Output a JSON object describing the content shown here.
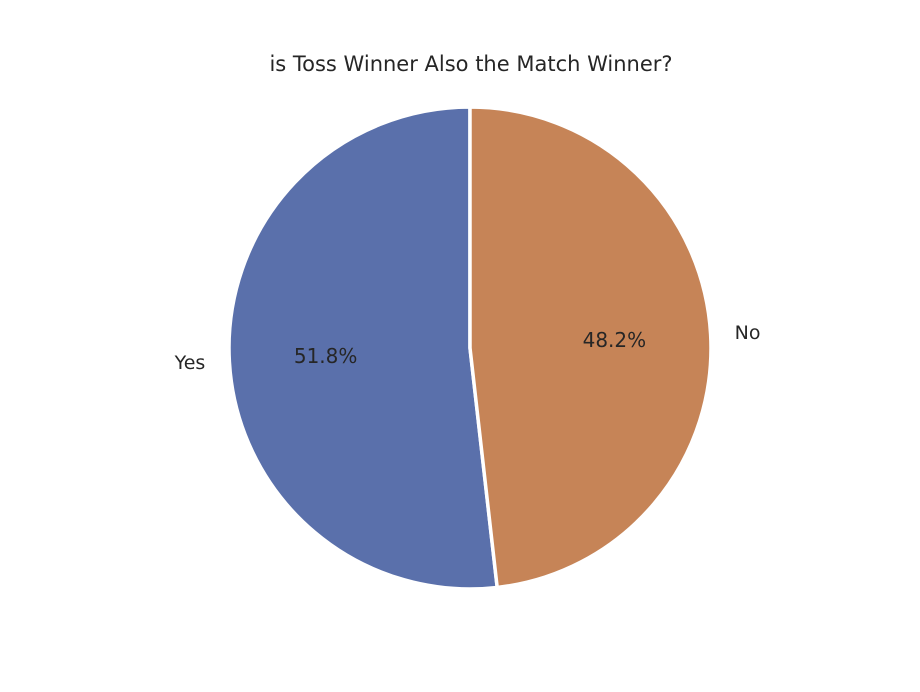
{
  "chart_data": {
    "type": "pie",
    "title": "is Toss Winner Also the Match Winner?",
    "categories": [
      "Yes",
      "No"
    ],
    "values": [
      51.8,
      48.2
    ],
    "percent_labels": [
      "51.8%",
      "48.2%"
    ],
    "colors": [
      "#5a70ab",
      "#c68457"
    ],
    "slice_edge_color": "#ffffff",
    "start_angle_deg": 90,
    "direction": "counterclockwise",
    "legend": "none"
  }
}
